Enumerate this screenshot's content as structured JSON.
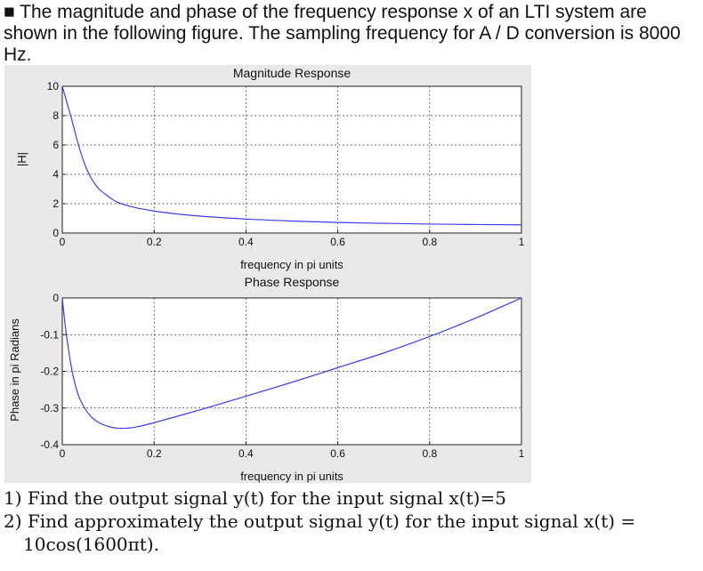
{
  "intro": {
    "bullet": "■",
    "text": "The magnitude and phase of the frequency response x of an LTI system are shown in the following figure. The sampling frequency for A / D conversion is 8000 Hz."
  },
  "chart_data": [
    {
      "type": "line",
      "title": "Magnitude Response",
      "xlabel": "frequency in pi units",
      "ylabel": "|H|",
      "xlim": [
        0,
        1
      ],
      "ylim": [
        0,
        10
      ],
      "xticks": [
        0,
        0.2,
        0.4,
        0.6,
        0.8,
        1
      ],
      "xtick_labels": [
        "0",
        "0.2",
        "0.4",
        "0.6",
        "0.8",
        "1"
      ],
      "yticks": [
        0,
        2,
        4,
        6,
        8,
        10
      ],
      "ytick_labels": [
        "0",
        "2",
        "4",
        "6",
        "8",
        "10"
      ],
      "grid": true,
      "color": "#3c3cf0",
      "series": [
        {
          "x": [
            0,
            0.01,
            0.02,
            0.03,
            0.04,
            0.05,
            0.06,
            0.07,
            0.08,
            0.1,
            0.12,
            0.15,
            0.2,
            0.25,
            0.3,
            0.4,
            0.5,
            0.6,
            0.7,
            0.8,
            0.9,
            1.0
          ],
          "y": [
            10,
            8.9,
            7.8,
            6.6,
            5.5,
            4.6,
            3.9,
            3.4,
            3.0,
            2.5,
            2.1,
            1.8,
            1.5,
            1.3,
            1.15,
            0.95,
            0.82,
            0.72,
            0.66,
            0.61,
            0.58,
            0.56
          ]
        }
      ]
    },
    {
      "type": "line",
      "title": "Phase Response",
      "xlabel": "frequency in pi units",
      "ylabel": "Phase in pi Radians",
      "xlim": [
        0,
        1
      ],
      "ylim": [
        -0.4,
        0
      ],
      "xticks": [
        0,
        0.2,
        0.4,
        0.6,
        0.8,
        1
      ],
      "xtick_labels": [
        "0",
        "0.2",
        "0.4",
        "0.6",
        "0.8",
        "1"
      ],
      "yticks": [
        0,
        -0.1,
        -0.2,
        -0.3,
        -0.4
      ],
      "ytick_labels": [
        "0",
        "-0.1",
        "-0.2",
        "-0.3",
        "-0.4"
      ],
      "grid": true,
      "color": "#3c3cf0",
      "series": [
        {
          "x": [
            0,
            0.005,
            0.01,
            0.02,
            0.03,
            0.04,
            0.06,
            0.08,
            0.1,
            0.12,
            0.14,
            0.16,
            0.2,
            0.3,
            0.4,
            0.5,
            0.6,
            0.7,
            0.8,
            0.9,
            1.0
          ],
          "y": [
            0,
            -0.06,
            -0.11,
            -0.19,
            -0.245,
            -0.28,
            -0.32,
            -0.34,
            -0.35,
            -0.355,
            -0.355,
            -0.352,
            -0.34,
            -0.305,
            -0.268,
            -0.23,
            -0.19,
            -0.15,
            -0.105,
            -0.055,
            0
          ]
        }
      ]
    }
  ],
  "questions": {
    "q1": "1) Find the output signal y(t) for the input signal x(t)=5",
    "q2a": "2) Find approximately the output signal y(t) for the input signal x(t) =",
    "q2b": "10cos(1600πt)."
  }
}
